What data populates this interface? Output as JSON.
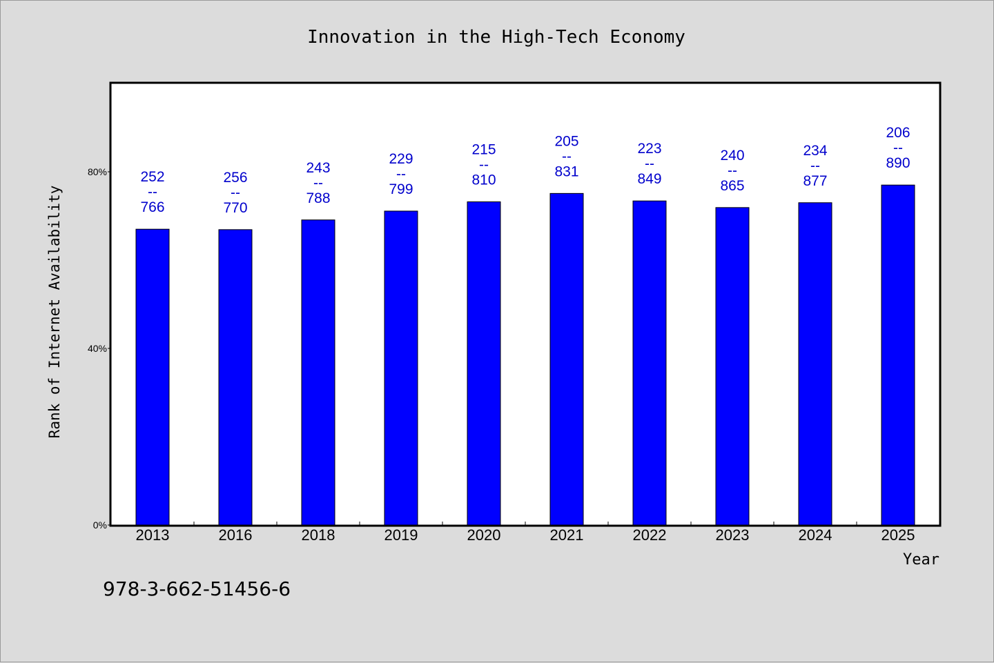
{
  "chart_data": {
    "type": "bar",
    "title": "Innovation in the High-Tech Economy",
    "xlabel": "Year",
    "ylabel": "Rank of Internet Availability",
    "y_ticks": [
      "0%",
      "40%",
      "80%"
    ],
    "y_tick_values": [
      0,
      40,
      80
    ],
    "ylim": [
      0,
      100
    ],
    "categories": [
      "2013",
      "2016",
      "2018",
      "2019",
      "2020",
      "2021",
      "2022",
      "2023",
      "2024",
      "2025"
    ],
    "values": [
      67.0,
      66.9,
      69.1,
      71.1,
      73.2,
      75.1,
      73.4,
      71.9,
      73.0,
      77.0
    ],
    "data_labels": [
      {
        "top": "252",
        "sep": "--",
        "bottom": "766"
      },
      {
        "top": "256",
        "sep": "--",
        "bottom": "770"
      },
      {
        "top": "243",
        "sep": "--",
        "bottom": "788"
      },
      {
        "top": "229",
        "sep": "--",
        "bottom": "799"
      },
      {
        "top": "215",
        "sep": "--",
        "bottom": "810"
      },
      {
        "top": "205",
        "sep": "--",
        "bottom": "831"
      },
      {
        "top": "223",
        "sep": "--",
        "bottom": "849"
      },
      {
        "top": "240",
        "sep": "--",
        "bottom": "865"
      },
      {
        "top": "234",
        "sep": "--",
        "bottom": "877"
      },
      {
        "top": "206",
        "sep": "--",
        "bottom": "890"
      }
    ],
    "bar_color": "#0000ff",
    "label_color": "#0000cc",
    "background": "#dcdcdc",
    "plot_background": "#ffffff",
    "grid": false,
    "legend": false
  },
  "footer": {
    "isbn": "978-3-662-51456-6"
  }
}
